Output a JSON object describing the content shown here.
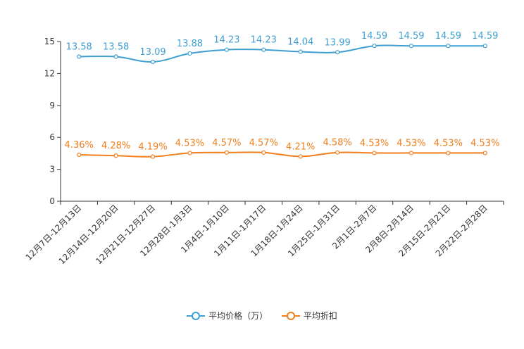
{
  "chart_data": {
    "type": "line",
    "title": "",
    "xlabel": "",
    "ylabel": "",
    "ylim": [
      0,
      15
    ],
    "yticks": [
      0,
      3,
      6,
      9,
      12,
      15
    ],
    "grid": false,
    "legend_position": "bottom-center",
    "categories": [
      "12月7日-12月13日",
      "12月14日-12月20日",
      "12月21日-12月27日",
      "12月28日-1月3日",
      "1月4日-1月10日",
      "1月11日-1月17日",
      "1月18日-1月24日",
      "1月25日-1月31日",
      "2月1日-2月7日",
      "2月8日-2月14日",
      "2月15日-2月21日",
      "2月22日-2月28日"
    ],
    "series": [
      {
        "name": "平均价格（万）",
        "color": "#3f9fd1",
        "values": [
          13.58,
          13.58,
          13.09,
          13.88,
          14.23,
          14.23,
          14.04,
          13.99,
          14.59,
          14.59,
          14.59,
          14.59
        ],
        "labels": [
          "13.58",
          "13.58",
          "13.09",
          "13.88",
          "14.23",
          "14.23",
          "14.04",
          "13.99",
          "14.59",
          "14.59",
          "14.59",
          "14.59"
        ]
      },
      {
        "name": "平均折扣",
        "color": "#f07f1d",
        "values": [
          4.36,
          4.28,
          4.19,
          4.53,
          4.57,
          4.57,
          4.21,
          4.58,
          4.53,
          4.53,
          4.53,
          4.53
        ],
        "labels": [
          "4.36%",
          "4.28%",
          "4.19%",
          "4.53%",
          "4.57%",
          "4.57%",
          "4.21%",
          "4.58%",
          "4.53%",
          "4.53%",
          "4.53%",
          "4.53%"
        ]
      }
    ]
  }
}
